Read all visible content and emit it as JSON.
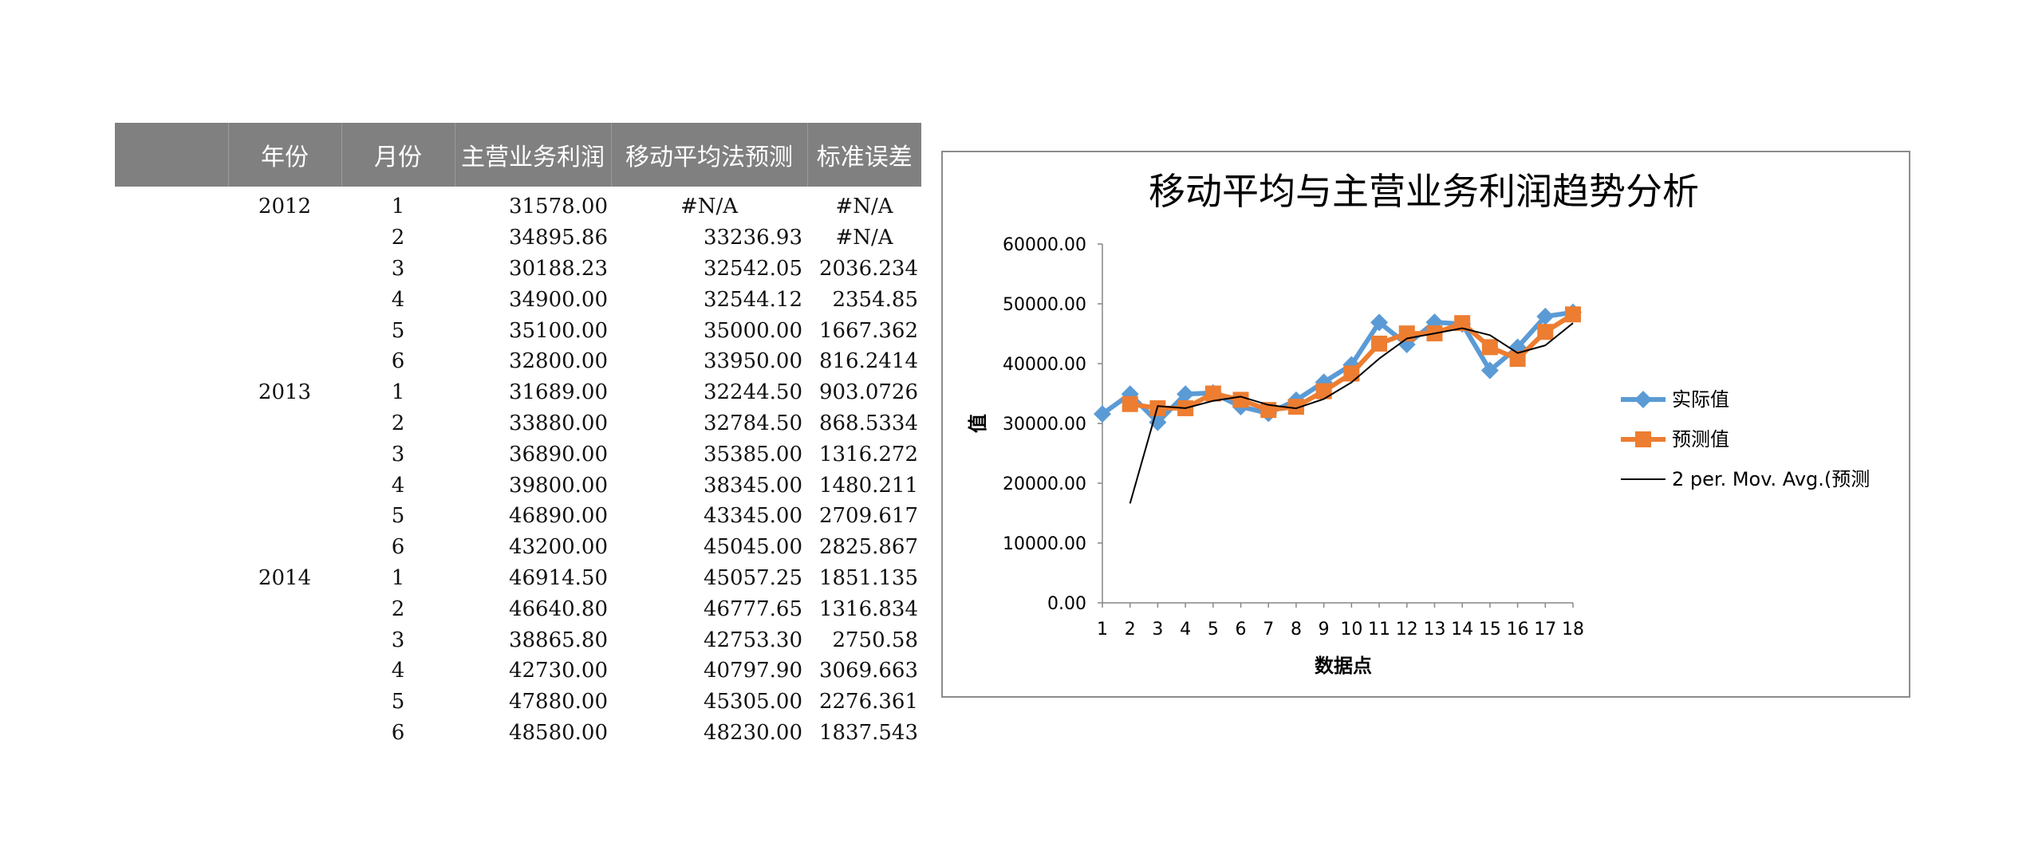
{
  "table": {
    "headers": [
      "",
      "年份",
      "月份",
      "主营业务利润",
      "移动平均法预测",
      "标准误差"
    ],
    "rows": [
      {
        "year": "2012",
        "month": "1",
        "profit": "31578.00",
        "forecast": "#N/A",
        "stderr": "#N/A"
      },
      {
        "year": "",
        "month": "2",
        "profit": "34895.86",
        "forecast": "33236.93",
        "stderr": "#N/A"
      },
      {
        "year": "",
        "month": "3",
        "profit": "30188.23",
        "forecast": "32542.05",
        "stderr": "2036.234"
      },
      {
        "year": "",
        "month": "4",
        "profit": "34900.00",
        "forecast": "32544.12",
        "stderr": "2354.85"
      },
      {
        "year": "",
        "month": "5",
        "profit": "35100.00",
        "forecast": "35000.00",
        "stderr": "1667.362"
      },
      {
        "year": "",
        "month": "6",
        "profit": "32800.00",
        "forecast": "33950.00",
        "stderr": "816.2414"
      },
      {
        "year": "2013",
        "month": "1",
        "profit": "31689.00",
        "forecast": "32244.50",
        "stderr": "903.0726"
      },
      {
        "year": "",
        "month": "2",
        "profit": "33880.00",
        "forecast": "32784.50",
        "stderr": "868.5334"
      },
      {
        "year": "",
        "month": "3",
        "profit": "36890.00",
        "forecast": "35385.00",
        "stderr": "1316.272"
      },
      {
        "year": "",
        "month": "4",
        "profit": "39800.00",
        "forecast": "38345.00",
        "stderr": "1480.211"
      },
      {
        "year": "",
        "month": "5",
        "profit": "46890.00",
        "forecast": "43345.00",
        "stderr": "2709.617"
      },
      {
        "year": "",
        "month": "6",
        "profit": "43200.00",
        "forecast": "45045.00",
        "stderr": "2825.867"
      },
      {
        "year": "2014",
        "month": "1",
        "profit": "46914.50",
        "forecast": "45057.25",
        "stderr": "1851.135"
      },
      {
        "year": "",
        "month": "2",
        "profit": "46640.80",
        "forecast": "46777.65",
        "stderr": "1316.834"
      },
      {
        "year": "",
        "month": "3",
        "profit": "38865.80",
        "forecast": "42753.30",
        "stderr": "2750.58"
      },
      {
        "year": "",
        "month": "4",
        "profit": "42730.00",
        "forecast": "40797.90",
        "stderr": "3069.663"
      },
      {
        "year": "",
        "month": "5",
        "profit": "47880.00",
        "forecast": "45305.00",
        "stderr": "2276.361"
      },
      {
        "year": "",
        "month": "6",
        "profit": "48580.00",
        "forecast": "48230.00",
        "stderr": "1837.543"
      }
    ]
  },
  "chart_data": {
    "type": "line",
    "title": "移动平均与主营业务利润趋势分析",
    "xlabel": "数据点",
    "ylabel": "值",
    "x": [
      1,
      2,
      3,
      4,
      5,
      6,
      7,
      8,
      9,
      10,
      11,
      12,
      13,
      14,
      15,
      16,
      17,
      18
    ],
    "ylim": [
      0,
      60000
    ],
    "yticks": [
      "0.00",
      "10000.00",
      "20000.00",
      "30000.00",
      "40000.00",
      "50000.00",
      "60000.00"
    ],
    "grid": false,
    "legend_position": "right",
    "series": [
      {
        "name": "实际值",
        "color": "#5B9BD5",
        "marker": "diamond",
        "values": [
          31578,
          34895.86,
          30188.23,
          34900,
          35100,
          32800,
          31689,
          33880,
          36890,
          39800,
          46890,
          43200,
          46914.5,
          46640.8,
          38865.8,
          42730,
          47880,
          48580
        ]
      },
      {
        "name": "预测值",
        "color": "#ED7D31",
        "marker": "square",
        "values": [
          null,
          33236.93,
          32542.05,
          32544.12,
          35000,
          33950,
          32244.5,
          32784.5,
          35385,
          38345,
          43345,
          45045,
          45057.25,
          46777.65,
          42753.3,
          40797.9,
          45305,
          48230
        ]
      },
      {
        "name": "2 per. Mov. Avg.(预测",
        "color": "#000000",
        "marker": "none",
        "values": [
          null,
          16618.47,
          32889.49,
          32543.09,
          33772.06,
          34475,
          33097.25,
          32514.5,
          34084.75,
          36865,
          40845,
          44195,
          45051.13,
          45917.45,
          44765.48,
          41775.6,
          43051.45,
          46767.5
        ]
      }
    ]
  }
}
